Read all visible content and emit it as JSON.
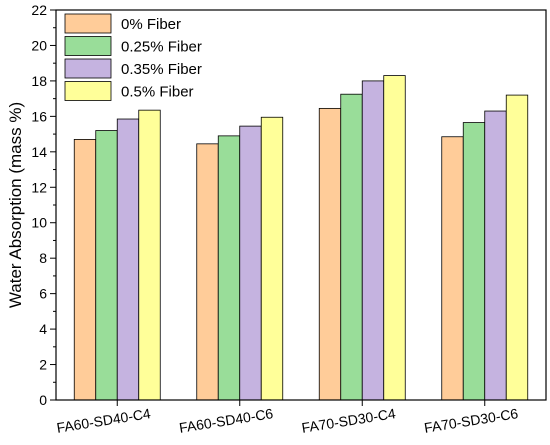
{
  "chart_data": {
    "type": "bar",
    "title": "",
    "xlabel": "",
    "ylabel": "Water Absorption (mass %)",
    "ylim": [
      0,
      22
    ],
    "yticks": [
      0,
      2,
      4,
      6,
      8,
      10,
      12,
      14,
      16,
      18,
      20,
      22
    ],
    "categories": [
      "FA60-SD40-C4",
      "FA60-SD40-C6",
      "FA70-SD30-C4",
      "FA70-SD30-C6"
    ],
    "series": [
      {
        "name": "0% Fiber",
        "color": "#FFCC99",
        "values": [
          14.7,
          14.45,
          16.45,
          14.85
        ]
      },
      {
        "name": "0.25% Fiber",
        "color": "#99DD99",
        "values": [
          15.2,
          14.9,
          17.25,
          15.65
        ]
      },
      {
        "name": "0.35% Fiber",
        "color": "#C5B3E0",
        "values": [
          15.85,
          15.45,
          18.0,
          16.3
        ]
      },
      {
        "name": "0.5% Fiber",
        "color": "#FFFF99",
        "values": [
          16.35,
          15.95,
          18.3,
          17.2
        ]
      }
    ],
    "legend_position": "top-left",
    "grid": false
  }
}
